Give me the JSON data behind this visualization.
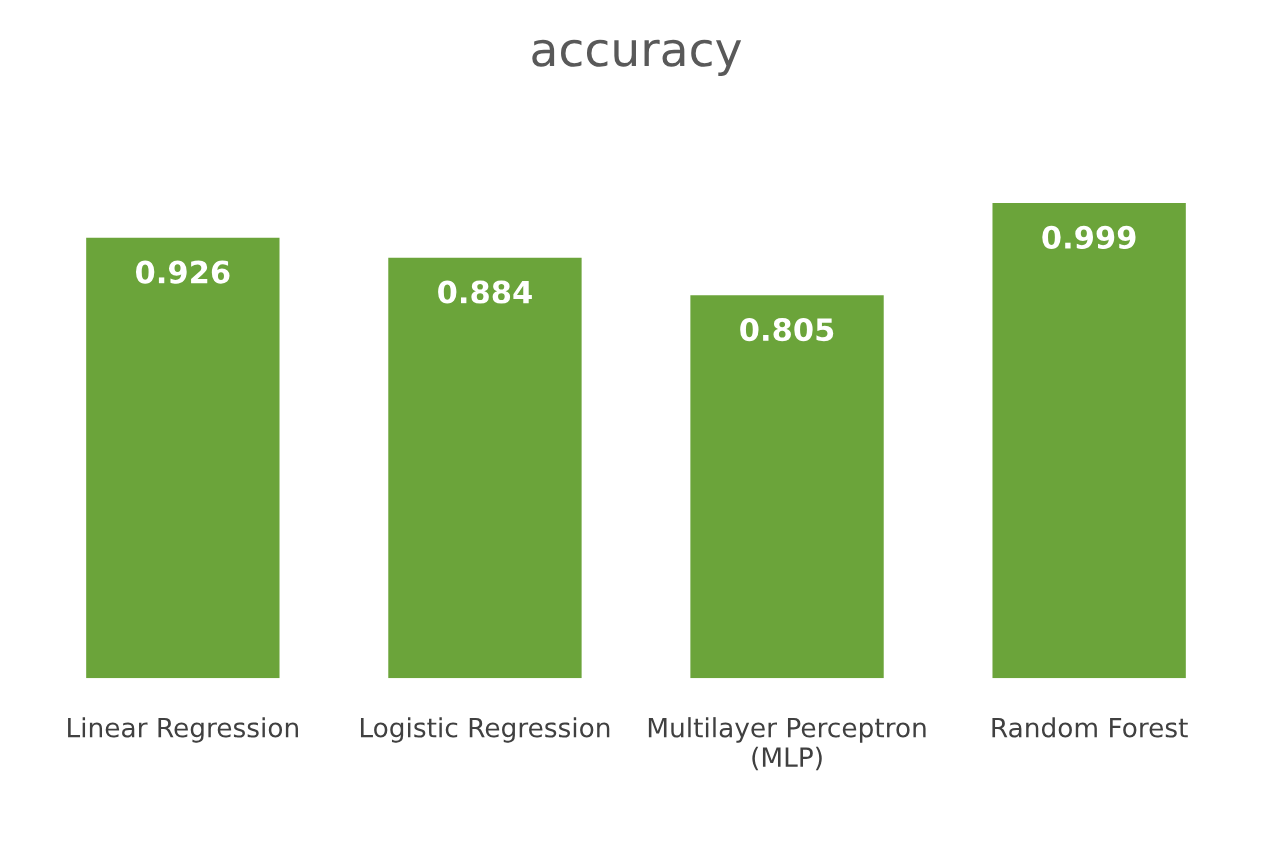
{
  "chart_data": {
    "type": "bar",
    "title": "accuracy",
    "categories": [
      "Linear Regression",
      "Logistic Regression",
      "Multilayer Perceptron (MLP)",
      "Random Forest"
    ],
    "values": [
      0.926,
      0.884,
      0.805,
      0.999
    ],
    "color": "#6ba43a",
    "data_labels": true,
    "grid": false,
    "legend": false
  }
}
